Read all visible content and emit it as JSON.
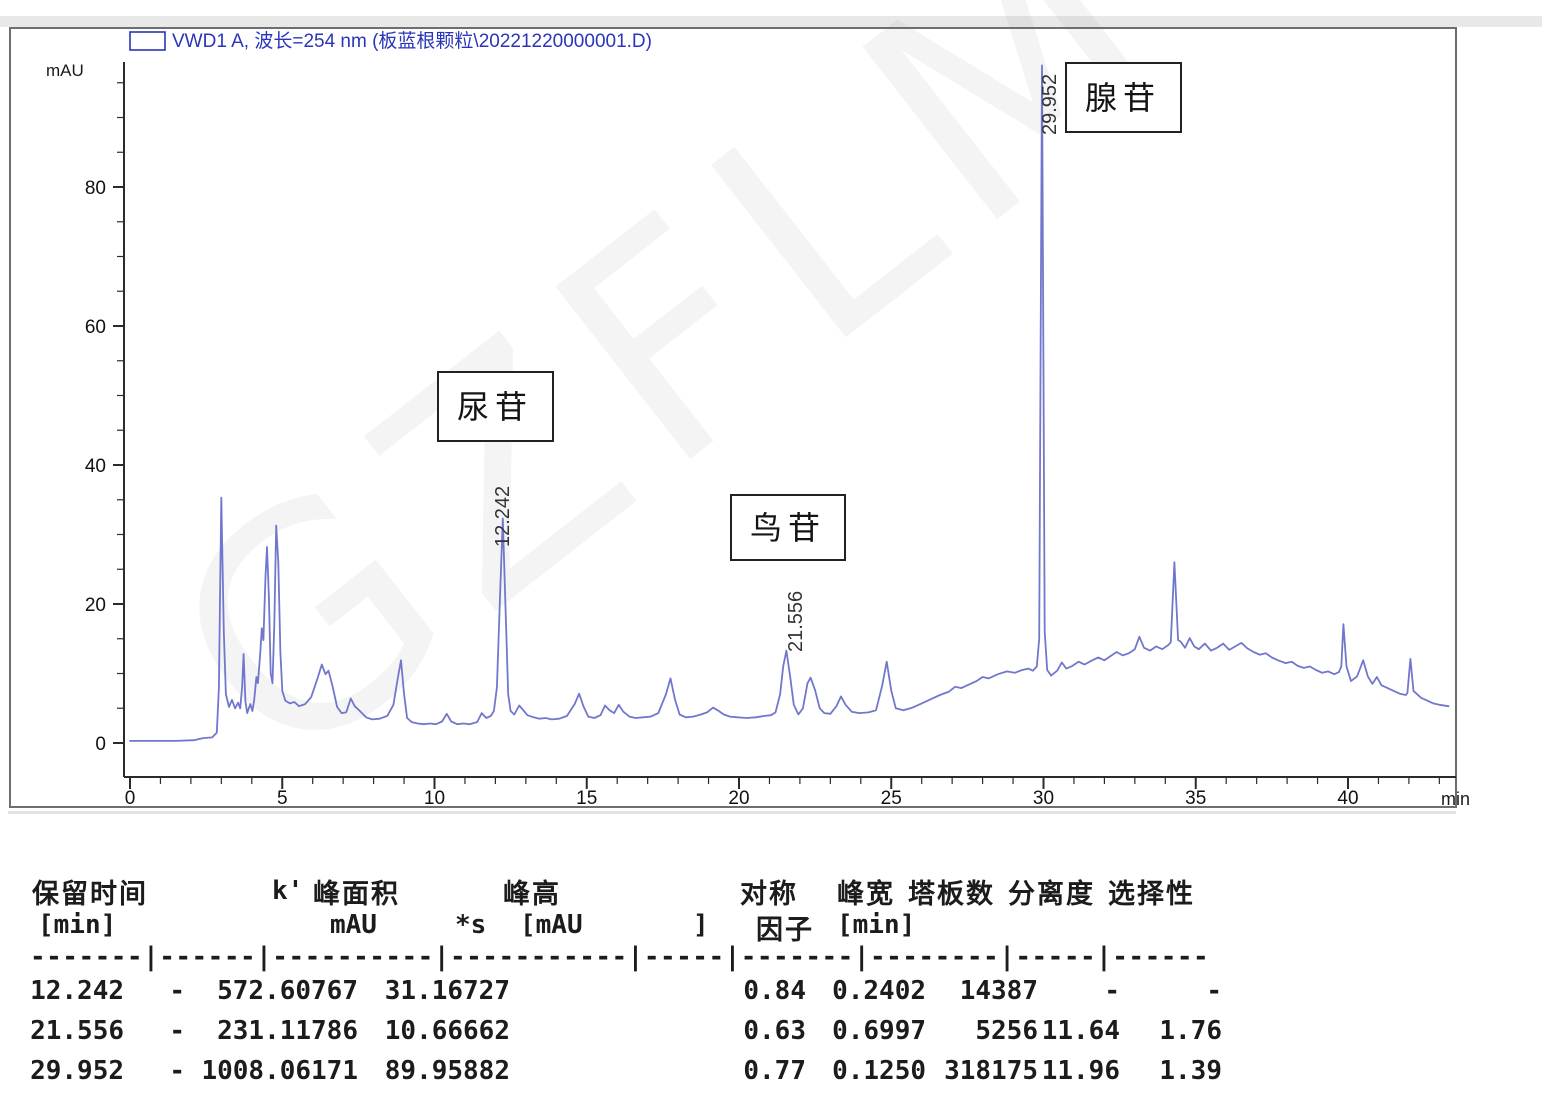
{
  "legend": {
    "label": "VWD1 A, 波长=254 nm (板蓝根颗粒\\20221220000001.D)"
  },
  "axes": {
    "y_unit": "mAU",
    "x_unit": "min"
  },
  "watermark": {
    "text": "GZFLM"
  },
  "table": {
    "header1": {
      "retention": "保留时间",
      "k": "k'",
      "area": "峰面积",
      "height": "峰高",
      "symmetry": "对称",
      "width": "峰宽",
      "plates": "塔板数",
      "resolution": "分离度",
      "selectivity": "选择性"
    },
    "header2": {
      "retention_unit": "[min]",
      "area_unit1": "mAU",
      "area_unit2": "*s",
      "height_unit1": "[mAU",
      "height_unit2": "]",
      "symmetry2": "因子",
      "width_unit": "[min]"
    },
    "separator": "-------|------|----------|-----------|-----|-------|--------|-----|------",
    "rows": [
      [
        "12.242",
        "-",
        "572.60767",
        "31.16727",
        "0.84",
        "0.2402",
        "14387",
        "-",
        "-"
      ],
      [
        "21.556",
        "-",
        "231.11786",
        "10.66662",
        "0.63",
        "0.6997",
        "5256",
        "11.64",
        "1.76"
      ],
      [
        "29.952",
        "-",
        "1008.06171",
        "89.95882",
        "0.77",
        "0.1250",
        "318175",
        "11.96",
        "1.39"
      ]
    ]
  },
  "chart_data": {
    "type": "line",
    "title": "VWD1 A, 波长=254 nm (板蓝根颗粒\\20221220000001.D)",
    "xlabel": "min",
    "ylabel": "mAU",
    "xlim": [
      0,
      43.4
    ],
    "ylim": [
      0,
      98
    ],
    "x_major_ticks": [
      0,
      5,
      10,
      15,
      20,
      25,
      30,
      35,
      40
    ],
    "y_major_ticks": [
      0,
      20,
      40,
      60,
      80
    ],
    "x_minor_step": 1,
    "y_minor_step": 5,
    "grid": false,
    "legend_position": "top-left",
    "peaks": [
      {
        "label": "12.242",
        "name": "尿苷",
        "retention_min": 12.242,
        "k": "-",
        "area_mAU_s": 572.60767,
        "height_mAU": 31.16727,
        "symmetry": 0.84,
        "width_min": 0.2402,
        "plates": 14387,
        "resolution": "-",
        "selectivity": "-"
      },
      {
        "label": "21.556",
        "name": "鸟苷",
        "retention_min": 21.556,
        "k": "-",
        "area_mAU_s": 231.11786,
        "height_mAU": 10.66662,
        "symmetry": 0.63,
        "width_min": 0.6997,
        "plates": 5256,
        "resolution": 11.64,
        "selectivity": 1.76
      },
      {
        "label": "29.952",
        "name": "腺苷",
        "retention_min": 29.952,
        "k": "-",
        "area_mAU_s": 1008.06171,
        "height_mAU": 89.95882,
        "symmetry": 0.77,
        "width_min": 0.125,
        "plates": 318175,
        "resolution": 11.96,
        "selectivity": 1.39
      }
    ],
    "trace": [
      [
        0,
        0.3
      ],
      [
        1.5,
        0.3
      ],
      [
        2.1,
        0.4
      ],
      [
        2.4,
        0.7
      ],
      [
        2.7,
        0.8
      ],
      [
        2.85,
        1.5
      ],
      [
        2.92,
        8
      ],
      [
        3.0,
        35.3
      ],
      [
        3.08,
        16
      ],
      [
        3.15,
        7
      ],
      [
        3.25,
        5.2
      ],
      [
        3.35,
        6.2
      ],
      [
        3.45,
        5.0
      ],
      [
        3.55,
        5.8
      ],
      [
        3.62,
        5.0
      ],
      [
        3.68,
        8
      ],
      [
        3.73,
        12.8
      ],
      [
        3.79,
        6
      ],
      [
        3.85,
        4.3
      ],
      [
        3.95,
        5.6
      ],
      [
        4.02,
        4.6
      ],
      [
        4.08,
        6.2
      ],
      [
        4.15,
        9.5
      ],
      [
        4.2,
        8.6
      ],
      [
        4.28,
        13
      ],
      [
        4.33,
        16.5
      ],
      [
        4.38,
        14.8
      ],
      [
        4.45,
        24
      ],
      [
        4.5,
        28.2
      ],
      [
        4.56,
        21
      ],
      [
        4.62,
        10
      ],
      [
        4.68,
        8.6
      ],
      [
        4.74,
        17
      ],
      [
        4.8,
        31.3
      ],
      [
        4.87,
        26
      ],
      [
        4.94,
        13
      ],
      [
        5.0,
        7.5
      ],
      [
        5.1,
        6.1
      ],
      [
        5.25,
        5.7
      ],
      [
        5.4,
        5.9
      ],
      [
        5.55,
        5.3
      ],
      [
        5.75,
        5.6
      ],
      [
        5.95,
        6.6
      ],
      [
        6.15,
        9.2
      ],
      [
        6.3,
        11.3
      ],
      [
        6.42,
        9.9
      ],
      [
        6.52,
        10.4
      ],
      [
        6.65,
        8.2
      ],
      [
        6.8,
        5.2
      ],
      [
        6.95,
        4.3
      ],
      [
        7.1,
        4.4
      ],
      [
        7.25,
        6.4
      ],
      [
        7.38,
        5.3
      ],
      [
        7.55,
        4.6
      ],
      [
        7.75,
        3.7
      ],
      [
        7.95,
        3.4
      ],
      [
        8.2,
        3.5
      ],
      [
        8.45,
        3.9
      ],
      [
        8.65,
        5.5
      ],
      [
        8.8,
        9.5
      ],
      [
        8.9,
        11.9
      ],
      [
        9.0,
        7
      ],
      [
        9.1,
        3.6
      ],
      [
        9.25,
        3.0
      ],
      [
        9.45,
        2.8
      ],
      [
        9.65,
        2.7
      ],
      [
        9.85,
        2.8
      ],
      [
        10.05,
        2.7
      ],
      [
        10.25,
        3.1
      ],
      [
        10.4,
        4.2
      ],
      [
        10.55,
        3.1
      ],
      [
        10.75,
        2.7
      ],
      [
        10.95,
        2.8
      ],
      [
        11.15,
        2.7
      ],
      [
        11.4,
        3.0
      ],
      [
        11.55,
        4.3
      ],
      [
        11.7,
        3.6
      ],
      [
        11.85,
        3.9
      ],
      [
        11.95,
        4.6
      ],
      [
        12.05,
        8
      ],
      [
        12.15,
        21
      ],
      [
        12.242,
        32.3
      ],
      [
        12.33,
        20
      ],
      [
        12.42,
        7
      ],
      [
        12.5,
        4.6
      ],
      [
        12.62,
        4.1
      ],
      [
        12.78,
        5.4
      ],
      [
        12.9,
        4.8
      ],
      [
        13.05,
        4.0
      ],
      [
        13.25,
        3.7
      ],
      [
        13.45,
        3.5
      ],
      [
        13.65,
        3.6
      ],
      [
        13.85,
        3.4
      ],
      [
        14.1,
        3.5
      ],
      [
        14.35,
        3.9
      ],
      [
        14.6,
        5.6
      ],
      [
        14.75,
        7.1
      ],
      [
        14.9,
        5.2
      ],
      [
        15.05,
        3.8
      ],
      [
        15.25,
        3.6
      ],
      [
        15.45,
        4.0
      ],
      [
        15.6,
        5.4
      ],
      [
        15.75,
        4.7
      ],
      [
        15.9,
        4.3
      ],
      [
        16.05,
        5.5
      ],
      [
        16.2,
        4.5
      ],
      [
        16.4,
        3.8
      ],
      [
        16.6,
        3.6
      ],
      [
        16.85,
        3.7
      ],
      [
        17.1,
        3.8
      ],
      [
        17.35,
        4.3
      ],
      [
        17.6,
        7
      ],
      [
        17.75,
        9.3
      ],
      [
        17.9,
        6.2
      ],
      [
        18.05,
        4.1
      ],
      [
        18.25,
        3.7
      ],
      [
        18.5,
        3.8
      ],
      [
        18.75,
        4.1
      ],
      [
        18.95,
        4.4
      ],
      [
        19.15,
        5.1
      ],
      [
        19.3,
        4.7
      ],
      [
        19.5,
        4.1
      ],
      [
        19.7,
        3.8
      ],
      [
        19.95,
        3.7
      ],
      [
        20.25,
        3.6
      ],
      [
        20.55,
        3.7
      ],
      [
        20.85,
        3.9
      ],
      [
        21.05,
        4.0
      ],
      [
        21.2,
        4.4
      ],
      [
        21.35,
        7
      ],
      [
        21.45,
        11
      ],
      [
        21.556,
        13.3
      ],
      [
        21.68,
        9.5
      ],
      [
        21.8,
        5.5
      ],
      [
        21.95,
        4.1
      ],
      [
        22.1,
        5.0
      ],
      [
        22.25,
        8.6
      ],
      [
        22.35,
        9.4
      ],
      [
        22.5,
        7.6
      ],
      [
        22.65,
        5.0
      ],
      [
        22.8,
        4.3
      ],
      [
        23.0,
        4.2
      ],
      [
        23.2,
        5.3
      ],
      [
        23.35,
        6.7
      ],
      [
        23.5,
        5.5
      ],
      [
        23.7,
        4.5
      ],
      [
        23.95,
        4.3
      ],
      [
        24.25,
        4.4
      ],
      [
        24.5,
        4.7
      ],
      [
        24.7,
        8.2
      ],
      [
        24.85,
        11.7
      ],
      [
        25.0,
        7.5
      ],
      [
        25.15,
        5.0
      ],
      [
        25.4,
        4.7
      ],
      [
        25.7,
        5.1
      ],
      [
        26.0,
        5.7
      ],
      [
        26.3,
        6.3
      ],
      [
        26.6,
        6.9
      ],
      [
        26.9,
        7.4
      ],
      [
        27.1,
        8.1
      ],
      [
        27.3,
        7.9
      ],
      [
        27.55,
        8.4
      ],
      [
        27.8,
        8.9
      ],
      [
        28.0,
        9.5
      ],
      [
        28.2,
        9.3
      ],
      [
        28.5,
        9.9
      ],
      [
        28.8,
        10.3
      ],
      [
        29.05,
        10.1
      ],
      [
        29.3,
        10.5
      ],
      [
        29.5,
        10.7
      ],
      [
        29.65,
        10.4
      ],
      [
        29.78,
        11
      ],
      [
        29.86,
        15
      ],
      [
        29.952,
        97.5
      ],
      [
        30.04,
        16
      ],
      [
        30.12,
        10.5
      ],
      [
        30.25,
        9.7
      ],
      [
        30.45,
        10.4
      ],
      [
        30.6,
        11.6
      ],
      [
        30.75,
        10.7
      ],
      [
        30.95,
        11.1
      ],
      [
        31.15,
        11.7
      ],
      [
        31.35,
        11.3
      ],
      [
        31.6,
        11.9
      ],
      [
        31.8,
        12.3
      ],
      [
        32.0,
        11.9
      ],
      [
        32.2,
        12.5
      ],
      [
        32.4,
        13.1
      ],
      [
        32.6,
        12.6
      ],
      [
        32.8,
        12.9
      ],
      [
        33.0,
        13.5
      ],
      [
        33.15,
        15.3
      ],
      [
        33.3,
        13.7
      ],
      [
        33.5,
        13.3
      ],
      [
        33.7,
        13.9
      ],
      [
        33.9,
        13.5
      ],
      [
        34.1,
        14.1
      ],
      [
        34.18,
        14.5
      ],
      [
        34.3,
        26
      ],
      [
        34.42,
        14.8
      ],
      [
        34.5,
        14.6
      ],
      [
        34.65,
        13.7
      ],
      [
        34.8,
        15.1
      ],
      [
        34.95,
        13.9
      ],
      [
        35.1,
        13.5
      ],
      [
        35.3,
        14.3
      ],
      [
        35.5,
        13.3
      ],
      [
        35.7,
        13.7
      ],
      [
        35.9,
        14.3
      ],
      [
        36.1,
        13.4
      ],
      [
        36.3,
        13.9
      ],
      [
        36.5,
        14.4
      ],
      [
        36.7,
        13.6
      ],
      [
        36.9,
        13.1
      ],
      [
        37.1,
        12.7
      ],
      [
        37.3,
        12.9
      ],
      [
        37.5,
        12.3
      ],
      [
        37.7,
        11.9
      ],
      [
        37.95,
        11.5
      ],
      [
        38.15,
        11.7
      ],
      [
        38.35,
        11.1
      ],
      [
        38.55,
        10.8
      ],
      [
        38.75,
        11.0
      ],
      [
        38.95,
        10.5
      ],
      [
        39.15,
        10.1
      ],
      [
        39.35,
        10.3
      ],
      [
        39.55,
        9.9
      ],
      [
        39.7,
        10.2
      ],
      [
        39.78,
        11
      ],
      [
        39.85,
        17.1
      ],
      [
        39.95,
        11
      ],
      [
        40.1,
        8.9
      ],
      [
        40.3,
        9.6
      ],
      [
        40.5,
        11.9
      ],
      [
        40.65,
        9.6
      ],
      [
        40.8,
        8.5
      ],
      [
        40.95,
        9.5
      ],
      [
        41.1,
        8.3
      ],
      [
        41.3,
        7.9
      ],
      [
        41.5,
        7.5
      ],
      [
        41.7,
        7.1
      ],
      [
        41.9,
        6.9
      ],
      [
        41.95,
        7.2
      ],
      [
        42.05,
        12.1
      ],
      [
        42.15,
        7.5
      ],
      [
        42.4,
        6.5
      ],
      [
        42.6,
        6.1
      ],
      [
        42.8,
        5.7
      ],
      [
        43.0,
        5.5
      ],
      [
        43.3,
        5.3
      ]
    ]
  }
}
